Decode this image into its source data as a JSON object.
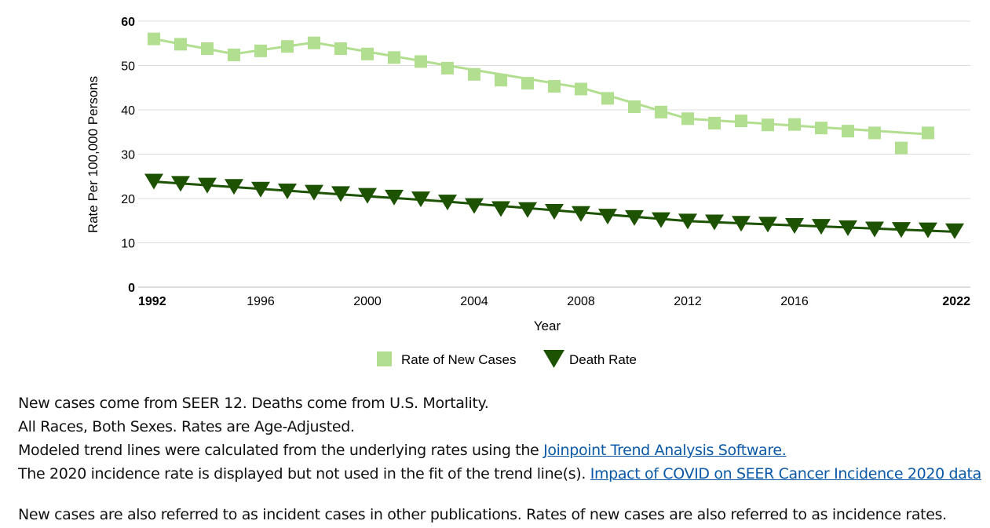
{
  "chart_data": {
    "type": "line",
    "xlabel": "Year",
    "ylabel": "Rate Per 100,000 Persons",
    "xlim": [
      1992,
      2022
    ],
    "ylim": [
      0,
      60
    ],
    "yticks": [
      0,
      10,
      20,
      30,
      40,
      50,
      60
    ],
    "xticks": [
      1992,
      1996,
      2000,
      2004,
      2008,
      2012,
      2016,
      2022
    ],
    "grid": true,
    "legend": "bottom-center",
    "series": [
      {
        "name": "Rate of New Cases",
        "marker": "square",
        "color": "#b1de8f",
        "line_color": "#b1de8f",
        "points": [
          [
            1992,
            56.0
          ],
          [
            1993,
            54.8
          ],
          [
            1994,
            53.8
          ],
          [
            1995,
            52.4
          ],
          [
            1996,
            53.3
          ],
          [
            1997,
            54.3
          ],
          [
            1998,
            55.1
          ],
          [
            1999,
            53.8
          ],
          [
            2000,
            52.6
          ],
          [
            2001,
            51.8
          ],
          [
            2002,
            50.9
          ],
          [
            2003,
            49.4
          ],
          [
            2004,
            48.0
          ],
          [
            2005,
            46.7
          ],
          [
            2006,
            46.0
          ],
          [
            2007,
            45.3
          ],
          [
            2008,
            44.7
          ],
          [
            2009,
            42.6
          ],
          [
            2010,
            40.7
          ],
          [
            2011,
            39.5
          ],
          [
            2012,
            38.0
          ],
          [
            2013,
            37.0
          ],
          [
            2014,
            37.5
          ],
          [
            2015,
            36.6
          ],
          [
            2016,
            36.7
          ],
          [
            2017,
            35.9
          ],
          [
            2018,
            35.2
          ],
          [
            2019,
            34.8
          ],
          [
            2020,
            31.4
          ],
          [
            2021,
            34.8
          ]
        ],
        "trend": [
          [
            1992,
            56.0
          ],
          [
            1995,
            52.6
          ],
          [
            1998,
            55.2
          ],
          [
            2003,
            50.0
          ],
          [
            2008,
            45.0
          ],
          [
            2012,
            38.0
          ],
          [
            2021,
            34.5
          ]
        ]
      },
      {
        "name": "Death Rate",
        "marker": "triangle-down",
        "color": "#1c5200",
        "line_color": "#1c5200",
        "points": [
          [
            1992,
            23.8
          ],
          [
            1993,
            23.3
          ],
          [
            1994,
            22.9
          ],
          [
            1995,
            22.6
          ],
          [
            1996,
            22.0
          ],
          [
            1997,
            21.6
          ],
          [
            1998,
            21.3
          ],
          [
            1999,
            21.0
          ],
          [
            2000,
            20.6
          ],
          [
            2001,
            20.2
          ],
          [
            2002,
            19.8
          ],
          [
            2003,
            19.1
          ],
          [
            2004,
            18.3
          ],
          [
            2005,
            17.6
          ],
          [
            2006,
            17.4
          ],
          [
            2007,
            17.0
          ],
          [
            2008,
            16.5
          ],
          [
            2009,
            15.9
          ],
          [
            2010,
            15.6
          ],
          [
            2011,
            15.1
          ],
          [
            2012,
            14.8
          ],
          [
            2013,
            14.6
          ],
          [
            2014,
            14.3
          ],
          [
            2015,
            14.1
          ],
          [
            2016,
            13.8
          ],
          [
            2017,
            13.6
          ],
          [
            2018,
            13.3
          ],
          [
            2019,
            13.0
          ],
          [
            2020,
            12.9
          ],
          [
            2021,
            12.8
          ],
          [
            2022,
            12.6
          ]
        ],
        "trend": [
          [
            1992,
            23.8
          ],
          [
            2003,
            19.3
          ],
          [
            2012,
            14.9
          ],
          [
            2022,
            12.5
          ]
        ]
      }
    ]
  },
  "notes": {
    "line1": "New cases come from SEER 12. Deaths come from U.S. Mortality.",
    "line2": "All Races, Both Sexes. Rates are Age-Adjusted.",
    "line3_text": "Modeled trend lines were calculated from the underlying rates using the ",
    "line3_link": "Joinpoint Trend Analysis Software.",
    "line4_text": "The 2020 incidence rate is displayed but not used in the fit of the trend line(s). ",
    "line4_link": "Impact of COVID on SEER Cancer Incidence 2020 data",
    "line5": "New cases are also referred to as incident cases in other publications. Rates of new cases are also referred to as incidence rates."
  }
}
